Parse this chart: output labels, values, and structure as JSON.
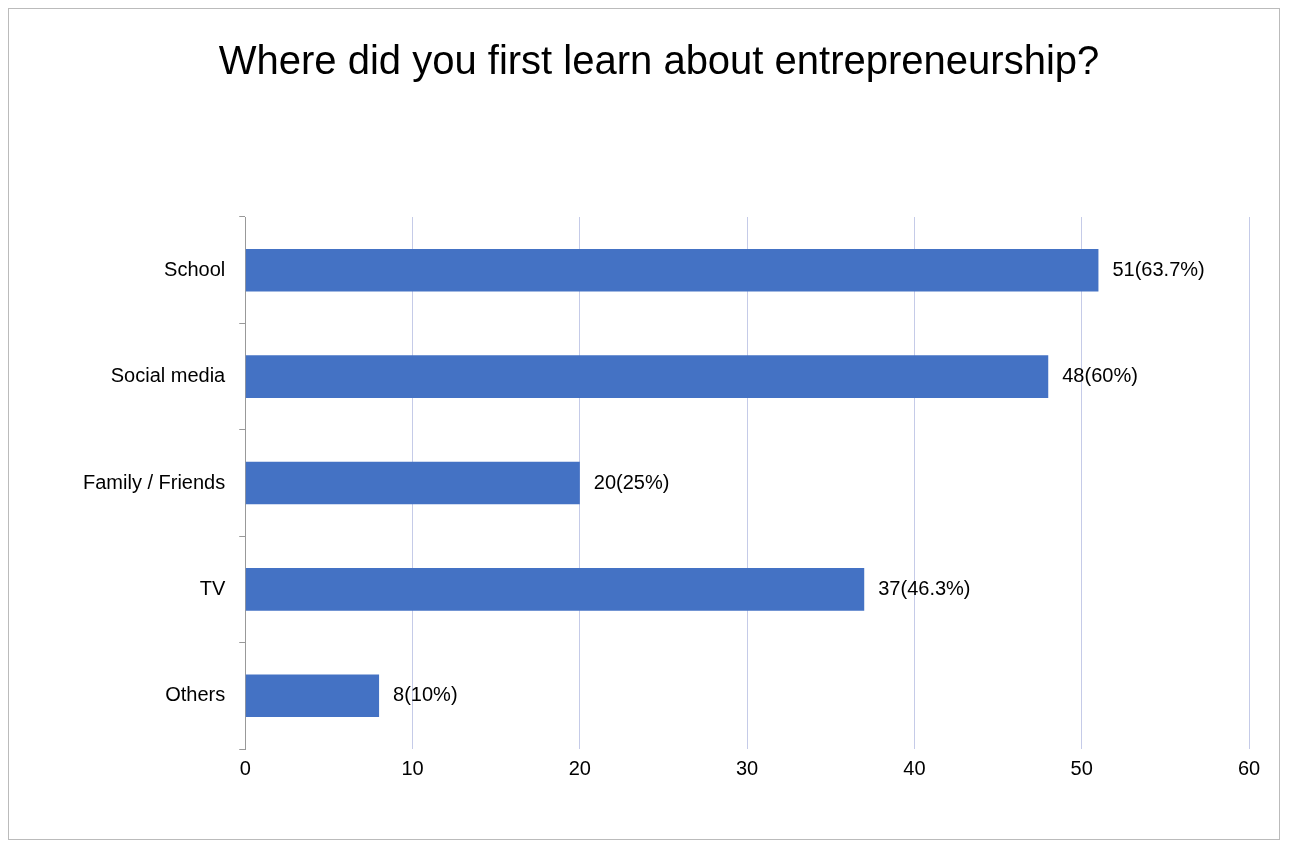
{
  "chart_data": {
    "type": "bar",
    "orientation": "horizontal",
    "title": "Where did you first learn about entrepreneurship?",
    "categories": [
      "School",
      "Social media",
      "Family / Friends",
      "TV",
      "Others"
    ],
    "values": [
      51,
      48,
      20,
      37,
      8
    ],
    "value_labels": [
      "51(63.7%)",
      "48(60%)",
      "20(25%)",
      "37(46.3%)",
      "8(10%)"
    ],
    "color": "#4472c4",
    "xlim": [
      0,
      60
    ],
    "xticks": [
      0,
      10,
      20,
      30,
      40,
      50,
      60
    ],
    "grid": "x",
    "legend": false
  }
}
